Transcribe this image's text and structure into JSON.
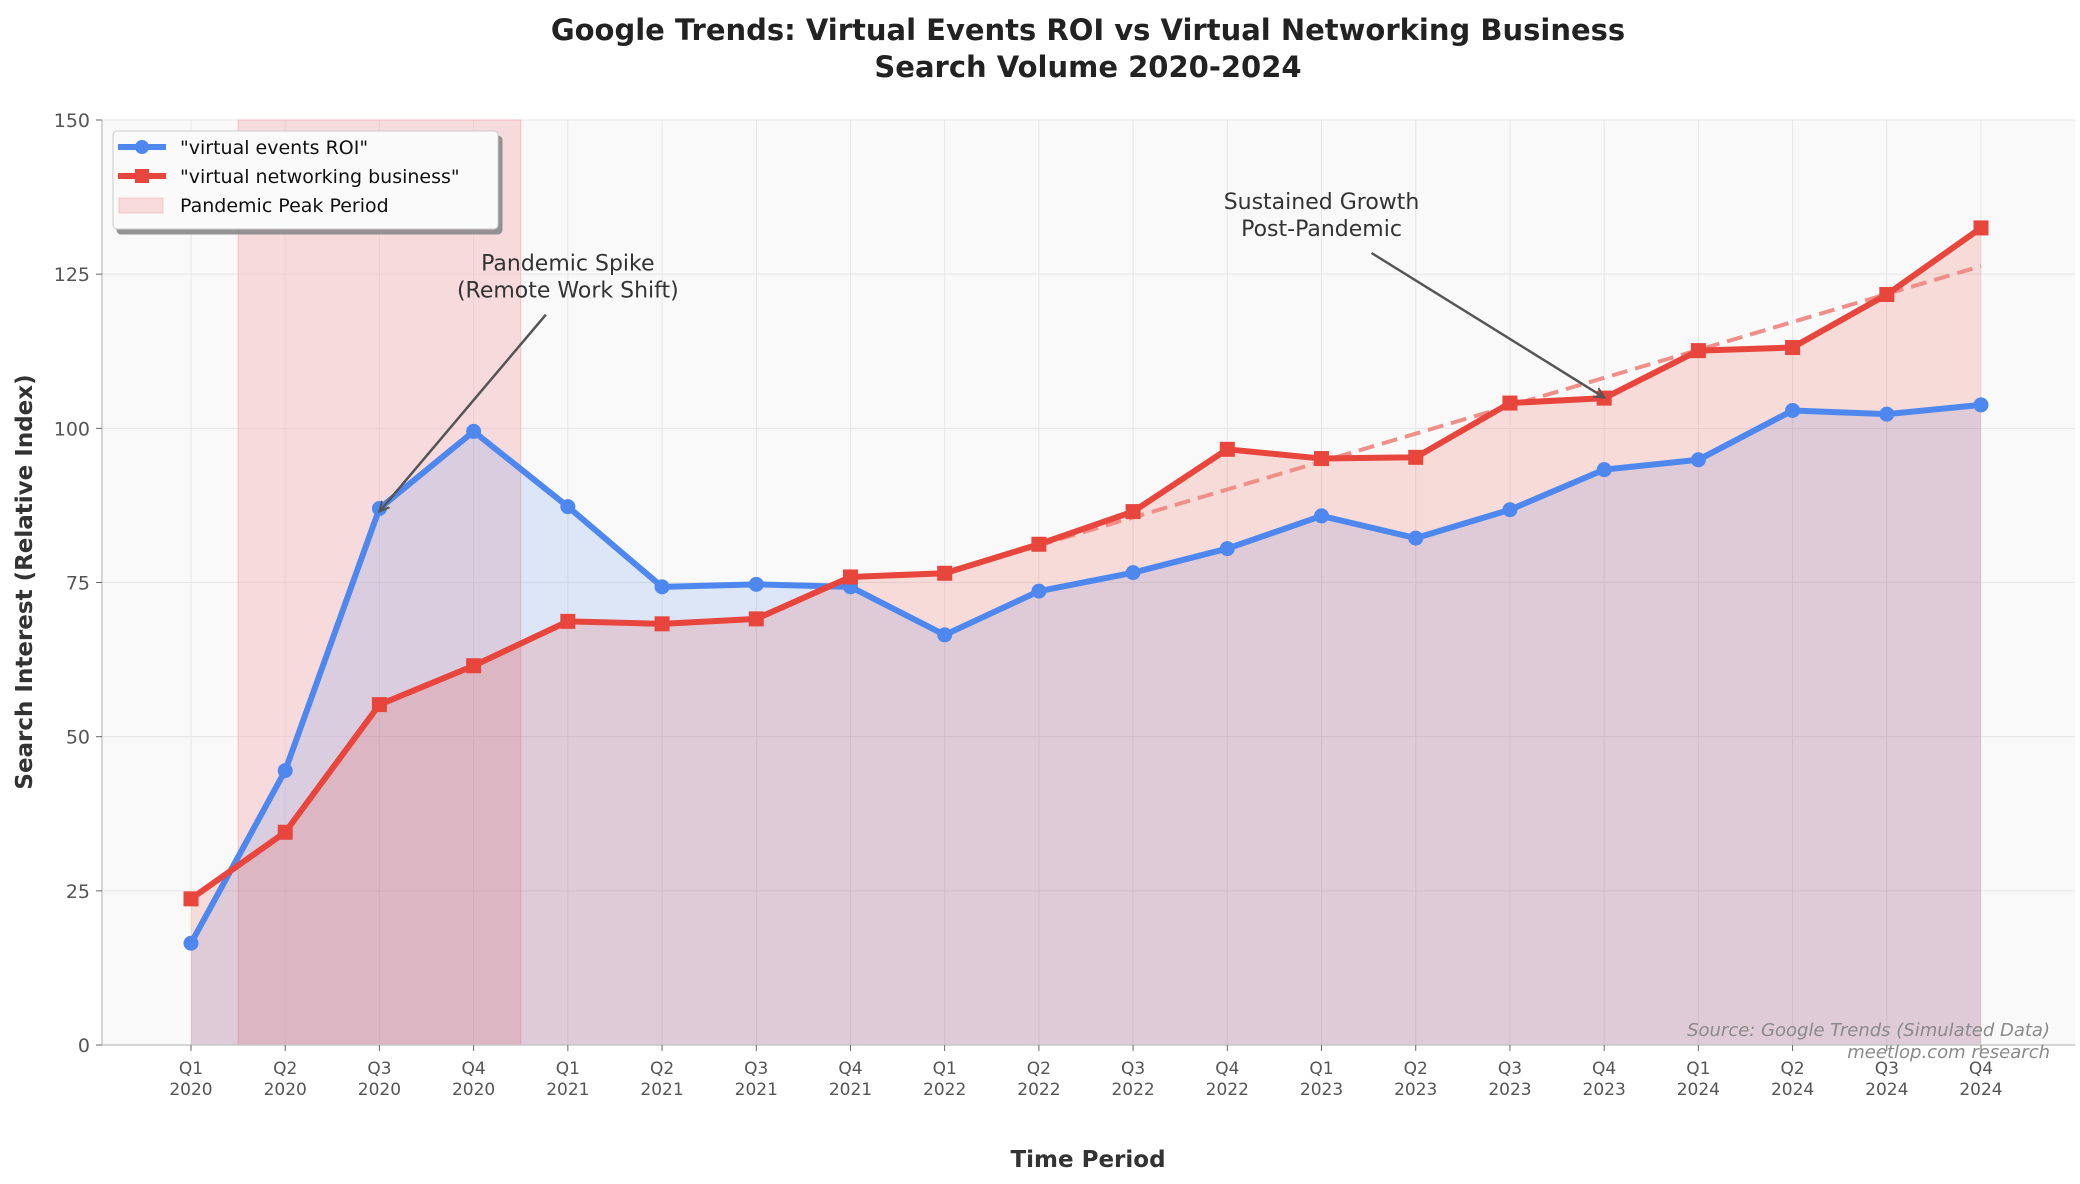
{
  "chart_data": {
    "type": "line",
    "title": "Google Trends: Virtual Events ROI vs Virtual Networking Business\nSearch Volume 2020-2024",
    "xlabel": "Time Period",
    "ylabel": "Search Interest (Relative Index)",
    "ylim": [
      0,
      150
    ],
    "yticks": [
      0,
      25,
      50,
      75,
      100,
      125,
      150
    ],
    "grid": true,
    "legend_placement": "top-left",
    "categories": [
      "Q1\n2020",
      "Q2\n2020",
      "Q3\n2020",
      "Q4\n2020",
      "Q1\n2021",
      "Q2\n2021",
      "Q3\n2021",
      "Q4\n2021",
      "Q1\n2022",
      "Q2\n2022",
      "Q3\n2022",
      "Q4\n2022",
      "Q1\n2023",
      "Q2\n2023",
      "Q3\n2023",
      "Q4\n2023",
      "Q1\n2024",
      "Q2\n2024",
      "Q3\n2024",
      "Q4\n2024"
    ],
    "series": [
      {
        "name": "\"virtual events ROI\"",
        "color": "#4e88ee",
        "marker": "circle",
        "values": [
          16.5,
          44.5,
          87.0,
          99.5,
          87.3,
          74.3,
          74.7,
          74.3,
          66.5,
          73.6,
          76.6,
          80.5,
          85.8,
          82.2,
          86.8,
          93.3,
          94.9,
          102.9,
          102.3,
          103.8
        ]
      },
      {
        "name": "\"virtual networking business\"",
        "color": "#e8453c",
        "marker": "square",
        "values": [
          23.7,
          34.5,
          55.2,
          61.5,
          68.7,
          68.3,
          69.1,
          75.9,
          76.5,
          81.2,
          86.5,
          96.6,
          95.1,
          95.3,
          104.1,
          104.9,
          112.6,
          113.1,
          121.7,
          132.5
        ]
      }
    ],
    "trendline": {
      "color": "#ef8f88",
      "style": "dashed",
      "from": [
        "Q1 2022",
        76.5
      ],
      "to": [
        "Q4 2024",
        126.3
      ]
    },
    "shaded_region": {
      "name": "Pandemic Peak Period",
      "color": "#f4a3a6",
      "from": "between Q1 2020 and Q2 2020",
      "to": "between Q4 2020 and Q1 2021"
    },
    "annotations": [
      {
        "text": "Pandemic Spike\n(Remote Work Shift)",
        "text_at": [
          "Q1 2021",
          122
        ],
        "arrow_to": [
          "Q3 2020",
          86.5
        ]
      },
      {
        "text": "Sustained Growth\nPost-Pandemic",
        "text_at": [
          "Q1 2023",
          132
        ],
        "arrow_to": [
          "Q4 2023",
          105
        ]
      }
    ],
    "source_note": "Source: Google Trends (Simulated Data)\nmeetlop.com research"
  }
}
